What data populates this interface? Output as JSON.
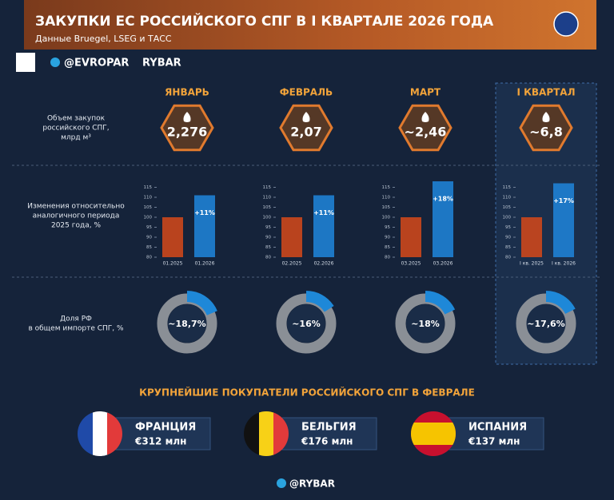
{
  "header": {
    "title": "ЗАКУПКИ ЕС РОССИЙСКОГО СПГ В I КВАРТАЛЕ 2026 ГОДА",
    "subtitle": "Данные Bruegel, LSEG и ТАСС"
  },
  "handles": {
    "channel": "@EVROPAR",
    "brand": "RYBAR"
  },
  "columns": [
    "ЯНВАРЬ",
    "ФЕВРАЛЬ",
    "МАРТ",
    "I КВАРТАЛ"
  ],
  "row_labels": [
    [
      "Объем закупок",
      "российского СПГ,",
      "млрд м³"
    ],
    [
      "Изменения относительно",
      "аналогичного периода",
      "2025 года, %"
    ],
    [
      "Доля РФ",
      "в общем импорте СПГ, %"
    ]
  ],
  "volumes": [
    "2,276",
    "2,07",
    "~2,46",
    "~6,8"
  ],
  "chart_data": [
    {
      "type": "bar",
      "categories": [
        "01.2025",
        "01.2026"
      ],
      "values": [
        100,
        111
      ],
      "colors": [
        "#c8471c",
        "#1e7fd0"
      ],
      "annotation": "+11%",
      "ylim": [
        80,
        120
      ],
      "yticks": [
        80,
        85,
        90,
        95,
        100,
        105,
        110,
        115
      ]
    },
    {
      "type": "bar",
      "categories": [
        "02.2025",
        "02.2026"
      ],
      "values": [
        100,
        111
      ],
      "colors": [
        "#c8471c",
        "#1e7fd0"
      ],
      "annotation": "+11%",
      "ylim": [
        80,
        120
      ],
      "yticks": [
        80,
        85,
        90,
        95,
        100,
        105,
        110,
        115
      ]
    },
    {
      "type": "bar",
      "categories": [
        "03.2025",
        "03.2026"
      ],
      "values": [
        100,
        118
      ],
      "colors": [
        "#c8471c",
        "#1e7fd0"
      ],
      "annotation": "+18%",
      "ylim": [
        80,
        120
      ],
      "yticks": [
        80,
        85,
        90,
        95,
        100,
        105,
        110,
        115
      ]
    },
    {
      "type": "bar",
      "categories": [
        "I кв. 2025",
        "I кв. 2026"
      ],
      "values": [
        100,
        117
      ],
      "colors": [
        "#c8471c",
        "#1e7fd0"
      ],
      "annotation": "+17%",
      "ylim": [
        80,
        120
      ],
      "yticks": [
        80,
        85,
        90,
        95,
        100,
        105,
        110,
        115
      ]
    },
    {
      "type": "donut",
      "values": [
        18.7
      ],
      "value_labels": [
        "~18,7%"
      ],
      "colors": [
        "#1e88d8",
        "#8a8f96"
      ]
    },
    {
      "type": "donut",
      "values": [
        16
      ],
      "value_labels": [
        "~16%"
      ],
      "colors": [
        "#1e88d8",
        "#8a8f96"
      ]
    },
    {
      "type": "donut",
      "values": [
        18
      ],
      "value_labels": [
        "~18%"
      ],
      "colors": [
        "#1e88d8",
        "#8a8f96"
      ]
    },
    {
      "type": "donut",
      "values": [
        17.6
      ],
      "value_labels": [
        "~17,6%"
      ],
      "colors": [
        "#1e88d8",
        "#8a8f96"
      ]
    }
  ],
  "buyers": {
    "title": "КРУПНЕЙШИЕ ПОКУПАТЕЛИ РОССИЙСКОГО СПГ В ФЕВРАЛЕ",
    "items": [
      {
        "country": "ФРАНЦИЯ",
        "amount": "€312 млн"
      },
      {
        "country": "БЕЛЬГИЯ",
        "amount": "€176 млн"
      },
      {
        "country": "ИСПАНИЯ",
        "amount": "€137 млн"
      }
    ]
  },
  "footer": "@RYBAR"
}
